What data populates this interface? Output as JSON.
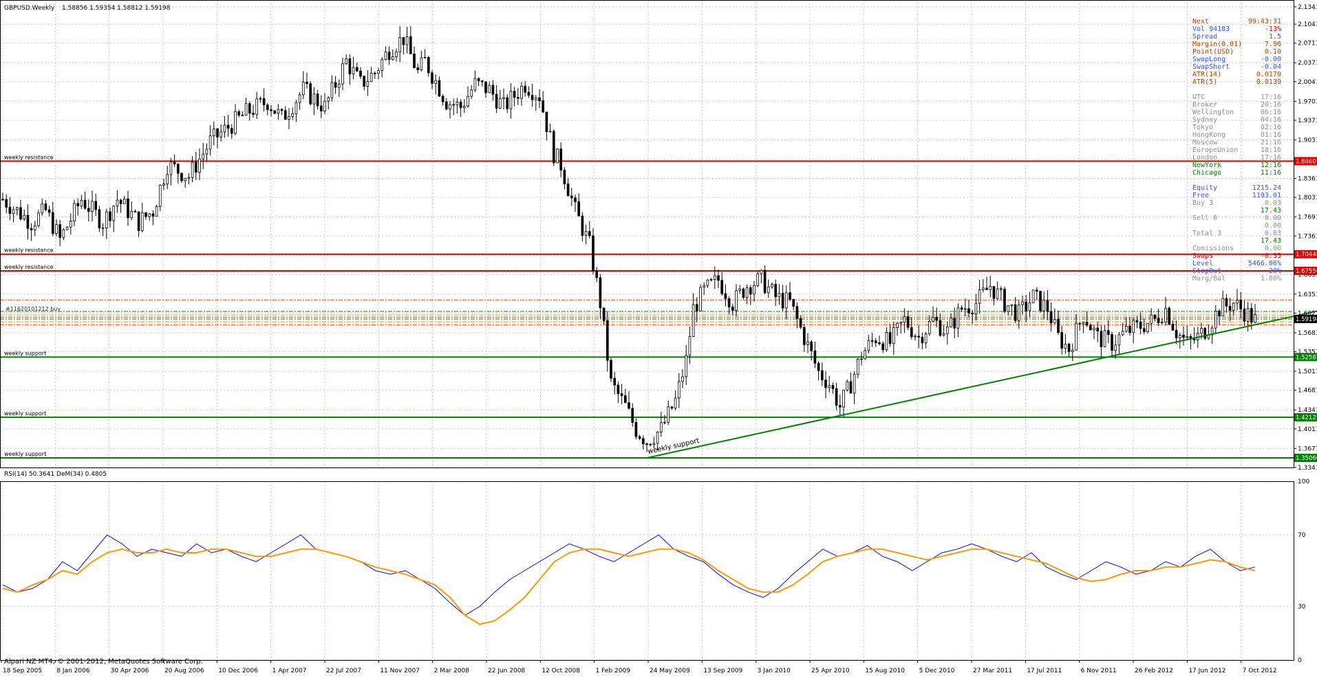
{
  "header": {
    "symbol": "GBPUSD.Weekly",
    "ohlc": "1.58856 1.59354 1.58812 1.59198"
  },
  "footer": {
    "copyright": "Alpari NZ MT4, © 2001-2012, MetaQuotes Software Corp."
  },
  "rsi_header": "RSI(14) 50.3641  DeM(34) 0.4805",
  "chart_data": [
    {
      "type": "candlestick",
      "title": "GBPUSD.Weekly",
      "y_ticks": [
        "2.13410",
        "2.10410",
        "2.07110",
        "2.03710",
        "2.00410",
        "1.97010",
        "1.93710",
        "1.90310",
        "1.86910",
        "1.83610",
        "1.80310",
        "1.76910",
        "1.73610",
        "1.70310",
        "1.66910",
        "1.63510",
        "1.60210",
        "1.56810",
        "1.53510",
        "1.50110",
        "1.46810",
        "1.43410",
        "1.40110",
        "1.36710",
        "1.33410"
      ],
      "ylim": [
        1.334,
        2.146
      ],
      "x_ticks": [
        "18 Sep 2005",
        "8 Jan 2006",
        "30 Apr 2006",
        "20 Aug 2006",
        "10 Dec 2006",
        "1 Apr 2007",
        "22 Jul 2007",
        "11 Nov 2007",
        "2 Mar 2008",
        "22 Jun 2008",
        "12 Oct 2008",
        "1 Feb 2009",
        "24 May 2009",
        "13 Sep 2009",
        "3 Jan 2010",
        "25 Apr 2010",
        "15 Aug 2010",
        "5 Dec 2010",
        "27 Mar 2011",
        "17 Jul 2011",
        "6 Nov 2011",
        "26 Feb 2012",
        "17 Jun 2012",
        "7 Oct 2012"
      ],
      "price_path": [
        [
          0,
          1.8
        ],
        [
          8,
          1.76
        ],
        [
          12,
          1.78
        ],
        [
          16,
          1.73
        ],
        [
          22,
          1.8
        ],
        [
          28,
          1.76
        ],
        [
          32,
          1.8
        ],
        [
          38,
          1.76
        ],
        [
          42,
          1.78
        ],
        [
          46,
          1.86
        ],
        [
          52,
          1.84
        ],
        [
          58,
          1.9
        ],
        [
          64,
          1.93
        ],
        [
          68,
          1.95
        ],
        [
          74,
          1.97
        ],
        [
          78,
          1.94
        ],
        [
          84,
          1.99
        ],
        [
          90,
          1.96
        ],
        [
          96,
          2.04
        ],
        [
          100,
          2.0
        ],
        [
          104,
          2.02
        ],
        [
          108,
          2.06
        ],
        [
          112,
          2.08
        ],
        [
          116,
          2.02
        ],
        [
          118,
          2.04
        ],
        [
          124,
          1.97
        ],
        [
          128,
          1.96
        ],
        [
          132,
          2.0
        ],
        [
          136,
          1.99
        ],
        [
          140,
          1.96
        ],
        [
          146,
          2.0
        ],
        [
          150,
          1.98
        ],
        [
          154,
          1.88
        ],
        [
          156,
          1.86
        ],
        [
          160,
          1.78
        ],
        [
          164,
          1.72
        ],
        [
          167,
          1.62
        ],
        [
          170,
          1.48
        ],
        [
          174,
          1.44
        ],
        [
          177,
          1.4
        ],
        [
          180,
          1.38
        ],
        [
          184,
          1.4
        ],
        [
          188,
          1.45
        ],
        [
          191,
          1.52
        ],
        [
          193,
          1.61
        ],
        [
          196,
          1.64
        ],
        [
          200,
          1.66
        ],
        [
          204,
          1.62
        ],
        [
          208,
          1.65
        ],
        [
          212,
          1.66
        ],
        [
          216,
          1.63
        ],
        [
          220,
          1.62
        ],
        [
          224,
          1.56
        ],
        [
          228,
          1.5
        ],
        [
          231,
          1.48
        ],
        [
          234,
          1.44
        ],
        [
          237,
          1.48
        ],
        [
          240,
          1.53
        ],
        [
          244,
          1.56
        ],
        [
          248,
          1.55
        ],
        [
          252,
          1.59
        ],
        [
          256,
          1.56
        ],
        [
          260,
          1.59
        ],
        [
          264,
          1.57
        ],
        [
          268,
          1.61
        ],
        [
          272,
          1.62
        ],
        [
          276,
          1.65
        ],
        [
          280,
          1.62
        ],
        [
          284,
          1.6
        ],
        [
          288,
          1.63
        ],
        [
          292,
          1.61
        ],
        [
          295,
          1.56
        ],
        [
          298,
          1.54
        ],
        [
          302,
          1.6
        ],
        [
          306,
          1.56
        ],
        [
          310,
          1.55
        ],
        [
          314,
          1.57
        ],
        [
          318,
          1.58
        ],
        [
          322,
          1.59
        ],
        [
          325,
          1.61
        ],
        [
          328,
          1.57
        ],
        [
          331,
          1.55
        ],
        [
          334,
          1.56
        ],
        [
          337,
          1.58
        ],
        [
          340,
          1.61
        ],
        [
          344,
          1.62
        ],
        [
          348,
          1.6
        ],
        [
          350,
          1.59
        ]
      ],
      "levels": [
        {
          "label": "weekly resistance",
          "value": 1.86607,
          "tag": "1.86607",
          "color": "#e00000"
        },
        {
          "label": "weekly resistance",
          "value": 1.70448,
          "tag": "1.70448",
          "color": "#e00000"
        },
        {
          "label": "weekly resistance",
          "value": 1.67556,
          "tag": "1.67556",
          "color": "#e00000"
        },
        {
          "label": "weekly support",
          "value": 1.52587,
          "tag": "1.52587",
          "color": "#008000"
        },
        {
          "label": "weekly support",
          "value": 1.42125,
          "tag": "1.42125",
          "color": "#008000"
        },
        {
          "label": "weekly support",
          "value": 1.35066,
          "tag": "1.35066",
          "color": "#008000"
        }
      ],
      "current_price": {
        "value": 1.59198,
        "tag": "1.59198"
      },
      "order_lines": [
        1.625,
        1.605,
        1.599,
        1.595,
        1.592,
        1.587,
        1.582
      ],
      "order_text": "#11620101212 buy",
      "trendline": {
        "label": "weekly support",
        "from": [
          180,
          1.35066
        ],
        "to": [
          400,
          1.65
        ]
      },
      "info_panel": [
        {
          "k": "Next",
          "v": "99:43:31",
          "c": "#c04000"
        },
        {
          "k": "Vol   94183",
          "v": "-13%",
          "c": "#3050ff",
          "vc": "#e00000"
        },
        {
          "k": "Spread",
          "v": "1.5",
          "c": "#3050ff"
        },
        {
          "k": "Margin(0.01)",
          "v": "7.96",
          "c": "#c04000"
        },
        {
          "k": "Point(USD)",
          "v": "0.10",
          "c": "#c04000"
        },
        {
          "k": "SwapLong",
          "v": "-0.00",
          "c": "#3050ff"
        },
        {
          "k": "SwapShort",
          "v": "-0.04",
          "c": "#3050ff"
        },
        {
          "k": "ATR(14)",
          "v": "0.0170",
          "c": "#c04000"
        },
        {
          "k": "ATR(5)",
          "v": "0.0139",
          "c": "#c04000"
        },
        {
          "k": "",
          "v": "",
          "c": "#888"
        },
        {
          "k": "UTC",
          "v": "17:16",
          "c": "#909090"
        },
        {
          "k": "Broker",
          "v": "20:16",
          "c": "#909090"
        },
        {
          "k": "Wellington",
          "v": "06:16",
          "c": "#909090"
        },
        {
          "k": "Sydney",
          "v": "04:16",
          "c": "#909090"
        },
        {
          "k": "Tokyo",
          "v": "02:16",
          "c": "#909090"
        },
        {
          "k": "HongKong",
          "v": "01:16",
          "c": "#909090"
        },
        {
          "k": "Moscow",
          "v": "21:16",
          "c": "#909090"
        },
        {
          "k": "EuropeUnion",
          "v": "18:16",
          "c": "#909090"
        },
        {
          "k": "London",
          "v": "17:16",
          "c": "#909090"
        },
        {
          "k": "NewYork",
          "v": "12:16",
          "c": "#008000"
        },
        {
          "k": "Chicago",
          "v": "11:16",
          "c": "#008000"
        },
        {
          "k": "",
          "v": "",
          "c": "#888"
        },
        {
          "k": "Equity",
          "v": "1215.24",
          "c": "#3050ff"
        },
        {
          "k": "Free",
          "v": "1193.01",
          "c": "#3050ff"
        },
        {
          "k": "Buy     3",
          "v": "0.03",
          "c": "#909090"
        },
        {
          "k": "",
          "v": "17.43",
          "c": "#008000"
        },
        {
          "k": "Sell    0",
          "v": "0.00",
          "c": "#909090"
        },
        {
          "k": "",
          "v": "0.00",
          "c": "#909090"
        },
        {
          "k": "Total   3",
          "v": "0.03",
          "c": "#909090"
        },
        {
          "k": "",
          "v": "17.43",
          "c": "#008000"
        },
        {
          "k": "Comissions",
          "v": "0.00",
          "c": "#909090"
        },
        {
          "k": "Swaps",
          "v": "-0.35",
          "c": "#e00000"
        },
        {
          "k": "Level",
          "v": "5466.06%",
          "c": "#3050ff"
        },
        {
          "k": "StopOut",
          "v": "20%",
          "c": "#3050ff"
        },
        {
          "k": "Marg/Bal",
          "v": "1.86%",
          "c": "#909090"
        }
      ]
    },
    {
      "type": "line",
      "title": "RSI(14) 50.3641  DeM(34) 0.4805",
      "ylim": [
        0,
        100
      ],
      "y_ticks": [
        "100",
        "70",
        "30",
        "0"
      ],
      "series": [
        {
          "name": "RSI(14)",
          "color": "#0000ff",
          "values": [
            42,
            38,
            40,
            45,
            55,
            50,
            60,
            70,
            65,
            58,
            62,
            60,
            58,
            65,
            60,
            62,
            58,
            55,
            60,
            65,
            70,
            62,
            60,
            58,
            55,
            50,
            48,
            50,
            45,
            40,
            32,
            25,
            30,
            38,
            45,
            50,
            55,
            60,
            65,
            62,
            58,
            55,
            60,
            65,
            70,
            62,
            58,
            55,
            48,
            42,
            38,
            35,
            40,
            48,
            55,
            62,
            58,
            60,
            64,
            58,
            55,
            50,
            55,
            60,
            62,
            65,
            62,
            58,
            55,
            60,
            52,
            48,
            45,
            50,
            55,
            52,
            48,
            50,
            55,
            52,
            58,
            62,
            55,
            50,
            52
          ]
        },
        {
          "name": "DeM(34)",
          "color": "#ff9900",
          "values": [
            40,
            38,
            42,
            45,
            50,
            48,
            55,
            60,
            62,
            60,
            60,
            62,
            60,
            60,
            62,
            62,
            60,
            58,
            58,
            60,
            62,
            62,
            60,
            58,
            55,
            52,
            50,
            48,
            45,
            42,
            35,
            25,
            20,
            22,
            28,
            35,
            45,
            55,
            60,
            62,
            62,
            60,
            58,
            60,
            62,
            62,
            60,
            56,
            50,
            45,
            40,
            38,
            38,
            42,
            48,
            55,
            58,
            60,
            62,
            62,
            60,
            58,
            56,
            58,
            60,
            62,
            62,
            60,
            58,
            56,
            54,
            50,
            46,
            44,
            45,
            48,
            50,
            50,
            52,
            52,
            54,
            56,
            55,
            52,
            50
          ]
        }
      ]
    }
  ]
}
